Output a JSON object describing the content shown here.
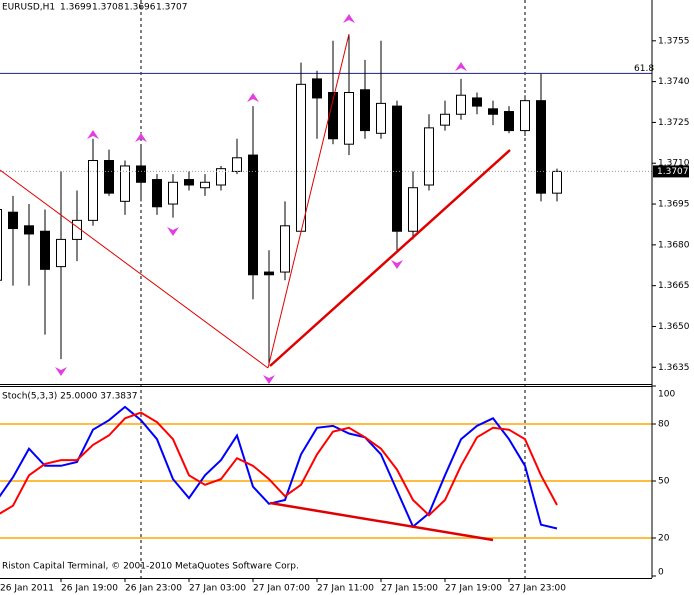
{
  "chart_data": [
    {
      "type": "candlestick",
      "title": "EURUSD,H1",
      "ylim": [
        1.3629,
        1.377
      ],
      "yticks": [
        1.3635,
        {
          "value": 1.365,
          "label": "1.3650"
        },
        1.3665,
        {
          "value": 1.368,
          "label": "1.3680"
        },
        1.3695,
        {
          "value": 1.371,
          "label": "1.3710"
        },
        1.3725,
        {
          "value": 1.374,
          "label": "1.3740"
        },
        1.3755
      ],
      "level": {
        "value": 1.3743,
        "label": "61.8",
        "color": "#3a3a8c"
      },
      "up_color": "#ffffff",
      "down_color": "#000000",
      "open": [
        1.3667,
        1.3692,
        1.3687,
        1.3685,
        1.3672,
        1.3682,
        1.3689,
        1.3711,
        1.3696,
        1.3709,
        1.3704,
        1.3695,
        1.3704,
        1.3701,
        1.3702,
        1.3707,
        1.3713,
        1.367,
        1.367,
        1.3685,
        1.3741,
        1.3736,
        1.3717,
        1.3737,
        1.3721,
        1.3731,
        1.3685,
        1.3702,
        1.3724,
        1.3728,
        1.3734,
        1.373,
        1.3729,
        1.3722,
        1.3733,
        1.3699
      ],
      "high": [
        1.3697,
        1.3698,
        1.3695,
        1.3693,
        1.3707,
        1.37,
        1.3719,
        1.3715,
        1.3711,
        1.3717,
        1.3706,
        1.3706,
        1.3707,
        1.3706,
        1.3709,
        1.3719,
        1.3731,
        1.3678,
        1.3696,
        1.3747,
        1.3744,
        1.3755,
        1.3757,
        1.3748,
        1.3755,
        1.3733,
        1.3707,
        1.3728,
        1.3733,
        1.3741,
        1.3736,
        1.3733,
        1.3731,
        1.3735,
        1.3743,
        1.3708
      ],
      "low": [
        1.3665,
        1.3665,
        1.3665,
        1.3647,
        1.3638,
        1.3674,
        1.3687,
        1.3698,
        1.3691,
        1.3696,
        1.3691,
        1.369,
        1.37,
        1.3698,
        1.37,
        1.3706,
        1.366,
        1.3636,
        1.3667,
        1.3685,
        1.3719,
        1.3717,
        1.3713,
        1.3719,
        1.3719,
        1.3678,
        1.3682,
        1.37,
        1.3722,
        1.3726,
        1.3728,
        1.3724,
        1.3721,
        1.372,
        1.3696,
        1.3696
      ],
      "close": [
        1.3693,
        1.3686,
        1.3684,
        1.3671,
        1.3682,
        1.3689,
        1.3711,
        1.3699,
        1.3709,
        1.3703,
        1.3694,
        1.3703,
        1.3702,
        1.3703,
        1.3708,
        1.3712,
        1.3669,
        1.3669,
        1.3687,
        1.3739,
        1.3734,
        1.3719,
        1.3736,
        1.3722,
        1.3732,
        1.3685,
        1.3701,
        1.3723,
        1.3728,
        1.3735,
        1.3731,
        1.3728,
        1.3722,
        1.3733,
        1.3699,
        1.3707
      ]
    },
    {
      "type": "line",
      "title": "Stoch(5,3,3) 25.0000 37.3837",
      "footer": "Riston Capital Terminal, © 2001-2010 MetaQuotes Software Corp.",
      "categories": [
        "26 Jan 2011",
        null,
        null,
        null,
        "26 Jan 19:00",
        null,
        null,
        null,
        "26 Jan 23:00",
        null,
        null,
        null,
        "27 Jan 03:00",
        null,
        null,
        null,
        "27 Jan 07:00",
        null,
        null,
        null,
        "27 Jan 11:00",
        null,
        null,
        null,
        "27 Jan 15:00",
        null,
        null,
        null,
        "27 Jan 19:00",
        null,
        null,
        null,
        "27 Jan 23:00",
        null,
        null,
        null
      ],
      "ylim": [
        0,
        100
      ],
      "yticks": [
        0,
        20,
        50,
        80,
        100
      ],
      "levels": [
        20,
        50,
        80
      ],
      "level_color": "#ffa500",
      "series": [
        {
          "color": "#0000ff",
          "values": [
            40,
            52,
            67,
            58,
            58,
            60,
            77,
            82,
            89,
            82,
            72,
            51,
            41,
            53,
            61,
            74,
            47,
            38,
            40,
            64,
            78,
            79,
            75,
            73,
            64,
            45,
            26,
            33,
            53,
            72,
            79,
            83,
            72,
            58,
            27,
            25
          ]
        },
        {
          "color": "#ff0000",
          "values": [
            32,
            37,
            53,
            59,
            61,
            61,
            69,
            74,
            83,
            86,
            81,
            72,
            53,
            48,
            51,
            62,
            58,
            51,
            42,
            48,
            64,
            76,
            78,
            73,
            67,
            56,
            40,
            32,
            40,
            58,
            73,
            78,
            77,
            72,
            53,
            37.3837
          ]
        }
      ]
    }
  ]
}
